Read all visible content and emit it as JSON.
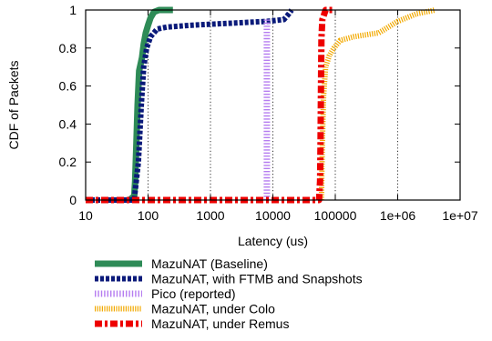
{
  "chart_data": {
    "type": "line",
    "xlabel": "Latency (us)",
    "ylabel": "CDF of Packets",
    "xscale": "log",
    "xlim": [
      10,
      10000000
    ],
    "ylim": [
      0,
      1
    ],
    "xticks": [
      {
        "value": 10,
        "label": "10"
      },
      {
        "value": 100,
        "label": "100"
      },
      {
        "value": 1000,
        "label": "1000"
      },
      {
        "value": 10000,
        "label": "10000"
      },
      {
        "value": 100000,
        "label": "100000"
      },
      {
        "value": 1000000,
        "label": "1e+06"
      },
      {
        "value": 10000000,
        "label": "1e+07"
      }
    ],
    "yticks": [
      {
        "value": 0,
        "label": "0"
      },
      {
        "value": 0.2,
        "label": "0.2"
      },
      {
        "value": 0.4,
        "label": "0.4"
      },
      {
        "value": 0.6,
        "label": "0.6"
      },
      {
        "value": 0.8,
        "label": "0.8"
      },
      {
        "value": 1,
        "label": "1"
      }
    ],
    "grid": {
      "x": true,
      "y": false,
      "style": "dotted"
    },
    "legend_position": "below-plot",
    "series": [
      {
        "name": "MazuNAT (Baseline)",
        "color": "#2e8b57",
        "style": "solid",
        "points": [
          [
            50,
            0
          ],
          [
            60,
            0.02
          ],
          [
            62,
            0.1
          ],
          [
            65,
            0.3
          ],
          [
            68,
            0.5
          ],
          [
            72,
            0.68
          ],
          [
            80,
            0.75
          ],
          [
            85,
            0.82
          ],
          [
            92,
            0.88
          ],
          [
            100,
            0.92
          ],
          [
            110,
            0.96
          ],
          [
            125,
            0.99
          ],
          [
            150,
            1.0
          ],
          [
            250,
            1.0
          ]
        ]
      },
      {
        "name": "MazuNAT, with FTMB and Snapshots",
        "color": "#0a1a7a",
        "style": "dashed",
        "points": [
          [
            10,
            0
          ],
          [
            60,
            0
          ],
          [
            70,
            0.2
          ],
          [
            78,
            0.5
          ],
          [
            85,
            0.7
          ],
          [
            95,
            0.8
          ],
          [
            110,
            0.86
          ],
          [
            140,
            0.9
          ],
          [
            200,
            0.91
          ],
          [
            500,
            0.92
          ],
          [
            2000,
            0.93
          ],
          [
            8000,
            0.94
          ],
          [
            15000,
            0.95
          ],
          [
            18000,
            0.98
          ],
          [
            20000,
            1.0
          ]
        ]
      },
      {
        "name": "Pico (reported)",
        "color": "#b57cf0",
        "style": "dotted",
        "points": [
          [
            8000,
            0
          ],
          [
            8000,
            0.95
          ]
        ]
      },
      {
        "name": "MazuNAT, under Colo",
        "color": "#f2a900",
        "style": "dense-dashed",
        "points": [
          [
            60000,
            0
          ],
          [
            62000,
            0.3
          ],
          [
            65000,
            0.55
          ],
          [
            70000,
            0.7
          ],
          [
            80000,
            0.76
          ],
          [
            95000,
            0.8
          ],
          [
            120000,
            0.84
          ],
          [
            200000,
            0.86
          ],
          [
            500000,
            0.88
          ],
          [
            1000000,
            0.94
          ],
          [
            2000000,
            0.98
          ],
          [
            4000000,
            1.0
          ]
        ]
      },
      {
        "name": "MazuNAT, under Remus",
        "color": "#ee0000",
        "style": "dash-dot",
        "points": [
          [
            10,
            0
          ],
          [
            55000,
            0
          ],
          [
            57000,
            0.1
          ],
          [
            58000,
            0.3
          ],
          [
            59000,
            0.6
          ],
          [
            60000,
            0.85
          ],
          [
            62000,
            0.95
          ],
          [
            70000,
            1.0
          ],
          [
            90000,
            1.0
          ]
        ]
      }
    ]
  }
}
